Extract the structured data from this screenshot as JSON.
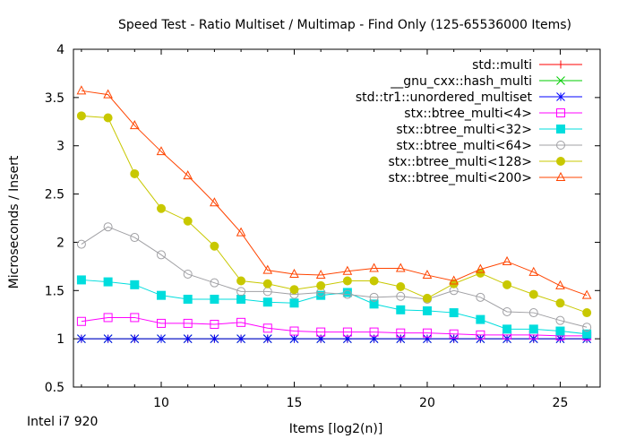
{
  "chart_data": {
    "type": "line",
    "title": "Speed Test - Ratio Multiset / Multimap - Find Only (125-65536000 Items)",
    "xlabel": "Items [log2(n)]",
    "ylabel": "Microseconds / Insert",
    "footnote": "Intel i7 920",
    "xlim": [
      6.7,
      26.5
    ],
    "ylim": [
      0.5,
      4
    ],
    "xticks": [
      10,
      15,
      20,
      25
    ],
    "yticks": [
      0.5,
      1,
      1.5,
      2,
      2.5,
      3,
      3.5,
      4
    ],
    "grid": false,
    "legend_position": "top-right",
    "x": [
      7,
      8,
      9,
      10,
      11,
      12,
      13,
      14,
      15,
      16,
      17,
      18,
      19,
      20,
      21,
      22,
      23,
      24,
      25,
      26
    ],
    "series": [
      {
        "name": "std::multi",
        "color": "#ff0000",
        "marker": "plus",
        "values": [
          1.0,
          1.0,
          1.0,
          1.0,
          1.0,
          1.0,
          1.0,
          1.0,
          1.0,
          1.0,
          1.0,
          1.0,
          1.0,
          1.0,
          1.0,
          1.0,
          1.0,
          1.0,
          1.0,
          1.0
        ]
      },
      {
        "name": "__gnu_cxx::hash_multi",
        "color": "#00cc00",
        "marker": "cross",
        "values": [
          1.0,
          1.0,
          1.0,
          1.0,
          1.0,
          1.0,
          1.0,
          1.0,
          1.0,
          1.0,
          1.0,
          1.0,
          1.0,
          1.0,
          1.0,
          1.0,
          1.0,
          1.0,
          1.0,
          1.0
        ]
      },
      {
        "name": "std::tr1::unordered_multiset",
        "color": "#0000ff",
        "marker": "star",
        "values": [
          1.0,
          1.0,
          1.0,
          1.0,
          1.0,
          1.0,
          1.0,
          1.0,
          1.0,
          1.0,
          1.0,
          1.0,
          1.0,
          1.0,
          1.0,
          1.0,
          1.0,
          1.0,
          1.0,
          1.0
        ]
      },
      {
        "name": "stx::btree_multi<4>",
        "color": "#ff00ff",
        "marker": "square-open",
        "values": [
          1.18,
          1.22,
          1.22,
          1.16,
          1.16,
          1.15,
          1.17,
          1.11,
          1.08,
          1.07,
          1.07,
          1.07,
          1.06,
          1.06,
          1.05,
          1.04,
          1.04,
          1.04,
          1.03,
          1.03
        ]
      },
      {
        "name": "stx::btree_multi<32>",
        "color": "#00dddd",
        "marker": "square-filled",
        "values": [
          1.61,
          1.59,
          1.56,
          1.45,
          1.41,
          1.41,
          1.41,
          1.38,
          1.37,
          1.45,
          1.48,
          1.36,
          1.3,
          1.29,
          1.27,
          1.2,
          1.1,
          1.1,
          1.08,
          1.05
        ]
      },
      {
        "name": "stx::btree_multi<64>",
        "color": "#a0a0a4",
        "marker": "circle-open",
        "values": [
          1.98,
          2.16,
          2.05,
          1.87,
          1.67,
          1.58,
          1.49,
          1.49,
          1.46,
          1.48,
          1.46,
          1.43,
          1.44,
          1.41,
          1.5,
          1.43,
          1.28,
          1.27,
          1.19,
          1.12
        ]
      },
      {
        "name": "stx::btree_multi<128>",
        "color": "#c8c800",
        "marker": "circle-filled",
        "values": [
          3.31,
          3.29,
          2.71,
          2.35,
          2.22,
          1.96,
          1.6,
          1.57,
          1.51,
          1.55,
          1.6,
          1.6,
          1.54,
          1.42,
          1.57,
          1.68,
          1.56,
          1.46,
          1.37,
          1.27
        ]
      },
      {
        "name": "stx::btree_multi<200>",
        "color": "#ff4400",
        "marker": "triangle-open",
        "values": [
          3.57,
          3.53,
          3.21,
          2.94,
          2.69,
          2.41,
          2.1,
          1.71,
          1.67,
          1.66,
          1.7,
          1.73,
          1.73,
          1.66,
          1.6,
          1.72,
          1.8,
          1.69,
          1.55,
          1.45
        ]
      }
    ]
  }
}
